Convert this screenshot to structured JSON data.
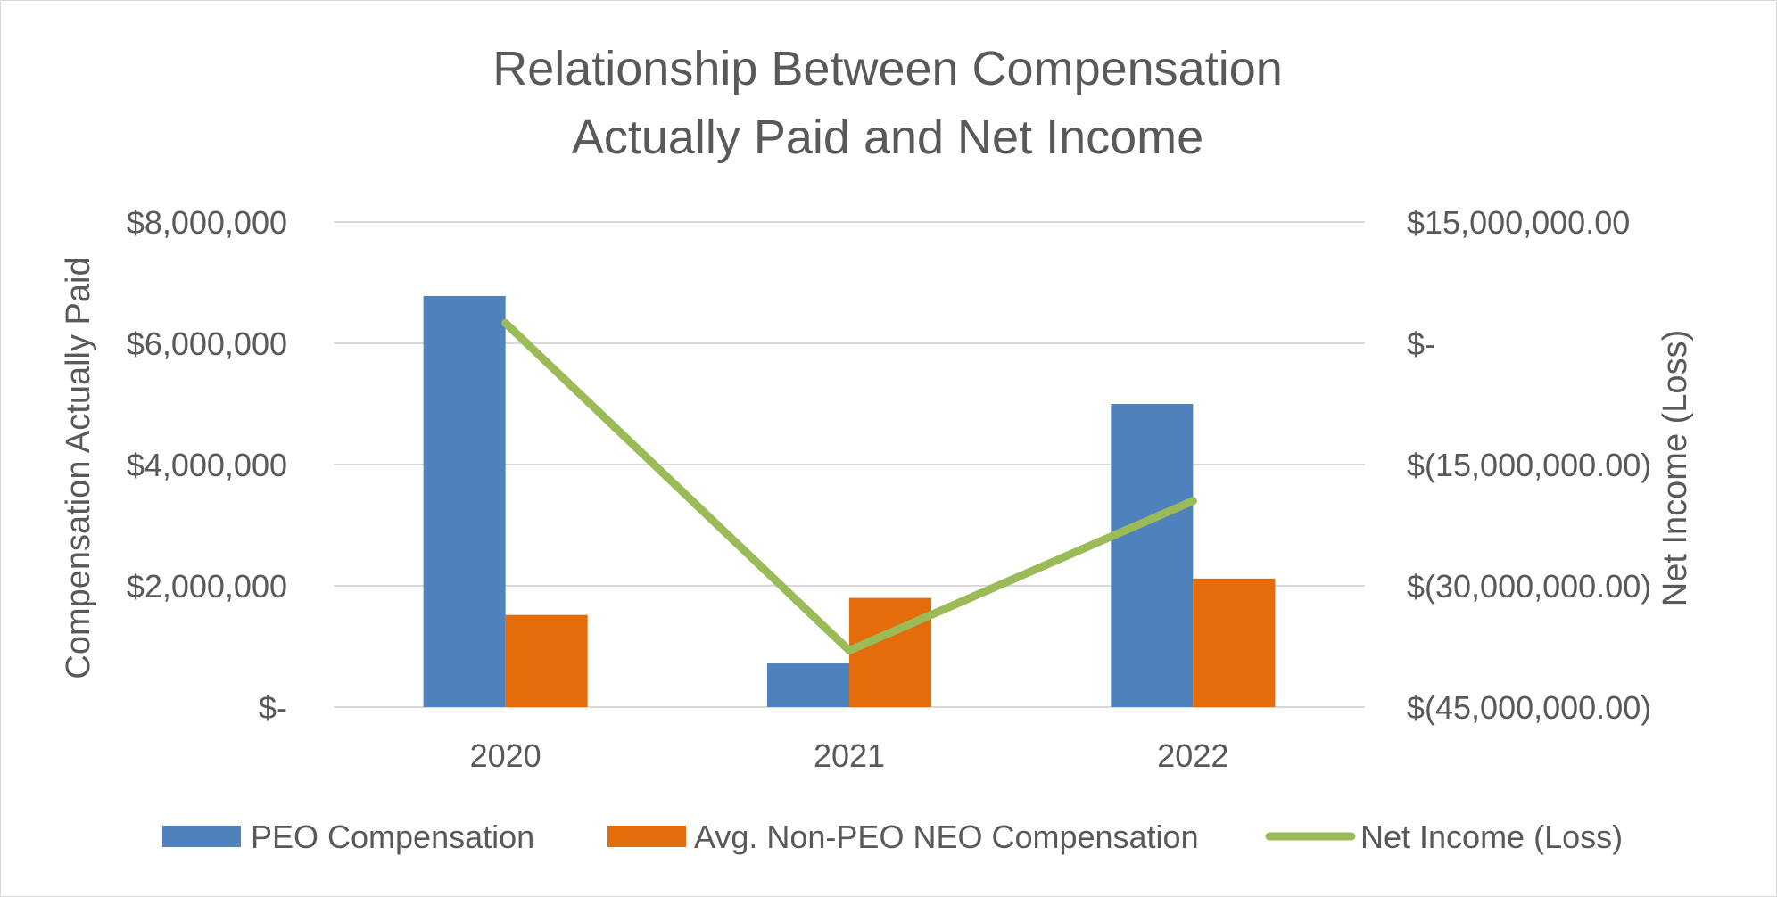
{
  "chart_data": {
    "type": "bar",
    "title_lines": [
      "Relationship Between Compensation",
      "Actually Paid and Net Income"
    ],
    "categories": [
      "2020",
      "2021",
      "2022"
    ],
    "ylabel": "Compensation Actually Paid",
    "y2label": "Net Income (Loss)",
    "ylim": [
      0,
      8000000
    ],
    "y_ticks": [
      0,
      2000000,
      4000000,
      6000000,
      8000000
    ],
    "y_tick_labels": [
      "$-",
      "$2,000,000",
      "$4,000,000",
      "$6,000,000",
      "$8,000,000"
    ],
    "y2lim": [
      -45000000,
      15000000
    ],
    "y2_ticks": [
      -45000000,
      -30000000,
      -15000000,
      0,
      15000000
    ],
    "y2_tick_labels": [
      "$(45,000,000.00)",
      "$(30,000,000.00)",
      "$(15,000,000.00)",
      "$-",
      "$15,000,000.00"
    ],
    "grid": true,
    "legend_position": "bottom",
    "series": [
      {
        "name": "PEO Compensation",
        "kind": "bar",
        "axis": "left",
        "color": "#4f81bd",
        "values": [
          6780000,
          720000,
          5000000
        ]
      },
      {
        "name": "Avg. Non-PEO NEO Compensation",
        "kind": "bar",
        "axis": "left",
        "color": "#e46c0a",
        "values": [
          1520000,
          1800000,
          2120000
        ]
      },
      {
        "name": "Net Income (Loss)",
        "kind": "line",
        "axis": "right",
        "color": "#9bbb59",
        "values": [
          2500000,
          -38000000,
          -19500000
        ]
      }
    ]
  }
}
